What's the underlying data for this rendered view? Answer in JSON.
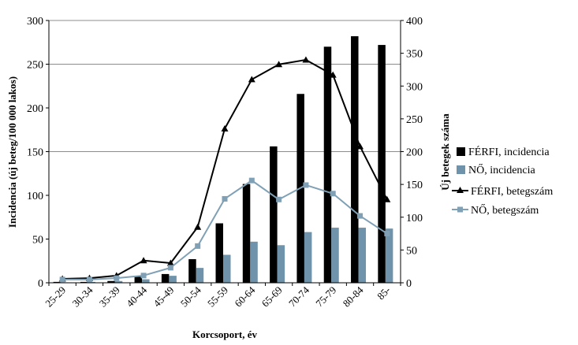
{
  "chart_data": {
    "type": "bar",
    "categories": [
      "25-29",
      "30-34",
      "35-39",
      "40-44",
      "45-49",
      "50-54",
      "55-59",
      "60-64",
      "65-69",
      "70-74",
      "75-79",
      "80-84",
      "85-"
    ],
    "series": [
      {
        "name": "FÉRFI, incidencia",
        "type": "bar",
        "axis": "left",
        "color": "#000000",
        "values": [
          1,
          1,
          2,
          7,
          10,
          27,
          68,
          113,
          156,
          216,
          270,
          282,
          272
        ]
      },
      {
        "name": "NŐ, incidencia",
        "type": "bar",
        "axis": "left",
        "color": "#6f93aa",
        "values": [
          0.5,
          1,
          2,
          4,
          8,
          17,
          32,
          47,
          43,
          58,
          63,
          63,
          62
        ]
      },
      {
        "name": "FÉRFI, betegszám",
        "type": "line",
        "axis": "right",
        "marker": "triangle",
        "color": "#000000",
        "values": [
          6,
          7,
          11,
          34,
          30,
          85,
          235,
          310,
          333,
          340,
          317,
          208,
          127
        ]
      },
      {
        "name": "NŐ, betegszám",
        "type": "line",
        "axis": "right",
        "marker": "square",
        "color": "#7fa0b5",
        "values": [
          5,
          5,
          7,
          11,
          23,
          56,
          128,
          156,
          127,
          149,
          136,
          102,
          75
        ]
      }
    ],
    "xlabel": "Korcsoport, év",
    "ylabel": "Incidencia (új beteg/100 000 lakos)",
    "y2label": "Új betegek száma",
    "ylim": [
      0,
      300
    ],
    "y2lim": [
      0,
      400
    ],
    "yticks": [
      0,
      50,
      100,
      150,
      200,
      250,
      300
    ],
    "y2ticks": [
      0,
      50,
      100,
      150,
      200,
      250,
      300,
      350,
      400
    ],
    "grid_values": [
      150,
      250,
      300
    ],
    "legend": "right"
  }
}
